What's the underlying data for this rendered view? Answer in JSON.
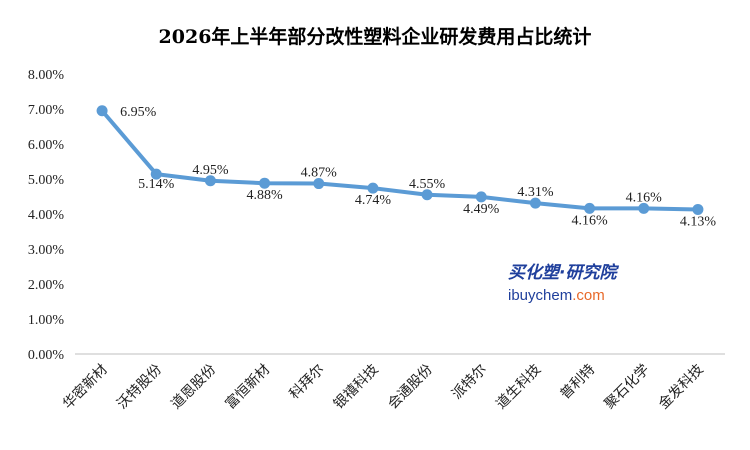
{
  "chart_data": {
    "type": "line",
    "title": "2026年上半年部分改性塑料企业研发费用占比统计",
    "categories": [
      "华密新材",
      "沃特股份",
      "道恩股份",
      "富恒新材",
      "科拜尔",
      "银禧科技",
      "会通股份",
      "派特尔",
      "道生科技",
      "普利特",
      "聚石化学",
      "金发科技"
    ],
    "series": [
      {
        "values": [
          6.95,
          5.14,
          4.95,
          4.88,
          4.87,
          4.74,
          4.55,
          4.49,
          4.31,
          4.16,
          4.16,
          4.13
        ],
        "labels": [
          "6.95%",
          "5.14%",
          "4.95%",
          "4.88%",
          "4.87%",
          "4.74%",
          "4.55%",
          "4.49%",
          "4.31%",
          "4.16%",
          "4.16%",
          "4.13%"
        ]
      }
    ],
    "y_ticks": [
      "0.00%",
      "1.00%",
      "2.00%",
      "3.00%",
      "4.00%",
      "5.00%",
      "6.00%",
      "7.00%",
      "8.00%"
    ],
    "ylim": [
      0,
      8
    ],
    "grid": false,
    "line_color": "#5b9bd5"
  },
  "watermark": {
    "cn": "买化塑·研究院",
    "en_main": "ibuychem",
    "en_suffix": ".com"
  }
}
